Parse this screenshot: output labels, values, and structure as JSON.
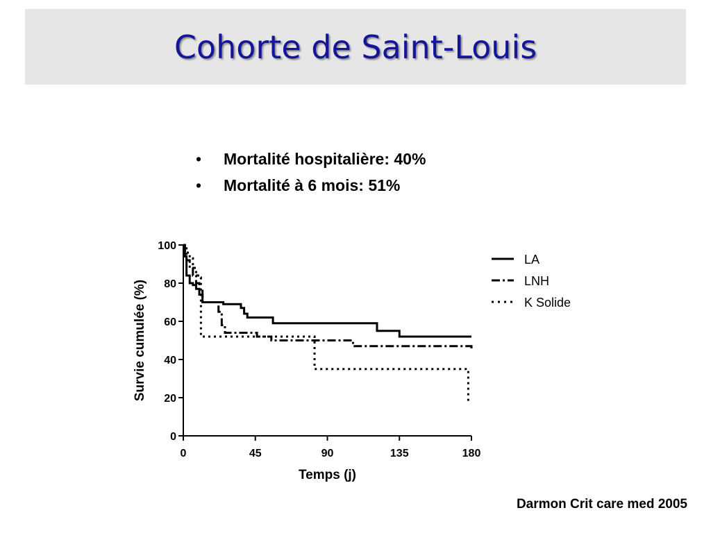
{
  "slide": {
    "title": "Cohorte de Saint-Louis",
    "bullets": [
      "Mortalité hospitalière: 40%",
      "Mortalité à 6 mois: 51%"
    ],
    "citation": "Darmon Crit care med 2005",
    "title_color": "#15159a",
    "title_bar_color": "#e6e6e6"
  },
  "chart_data": {
    "type": "line",
    "title": "",
    "xlabel": "Temps (j)",
    "ylabel": "Survie cumulée (%)",
    "xlim": [
      0,
      180
    ],
    "ylim": [
      0,
      100
    ],
    "xticks": [
      0,
      45,
      90,
      135,
      180
    ],
    "yticks": [
      0,
      20,
      40,
      60,
      80,
      100
    ],
    "grid": false,
    "legend_position": "right",
    "series": [
      {
        "name": "LA",
        "style": "solid",
        "color": "#000000",
        "step": true,
        "x": [
          0,
          1,
          2,
          4,
          6,
          8,
          10,
          12,
          25,
          36,
          38,
          40,
          56,
          121,
          135,
          180
        ],
        "y": [
          100,
          94,
          84,
          80,
          79,
          77,
          74,
          70,
          69,
          67,
          64,
          62,
          59,
          55,
          52,
          52
        ]
      },
      {
        "name": "LNH",
        "style": "dash-dot",
        "color": "#000000",
        "step": true,
        "x": [
          0,
          1,
          2,
          4,
          6,
          8,
          10,
          12,
          20,
          22,
          24,
          26,
          46,
          55,
          80,
          106,
          178,
          180
        ],
        "y": [
          100,
          97,
          92,
          88,
          84,
          80,
          76,
          70,
          70,
          65,
          58,
          54,
          52,
          50,
          50,
          47,
          47,
          45
        ]
      },
      {
        "name": "K Solide",
        "style": "dotted",
        "color": "#000000",
        "step": true,
        "x": [
          0,
          2,
          4,
          6,
          8,
          10,
          11,
          80,
          82,
          177,
          178
        ],
        "y": [
          100,
          96,
          93,
          88,
          84,
          83,
          52,
          52,
          35,
          35,
          17
        ]
      }
    ]
  }
}
